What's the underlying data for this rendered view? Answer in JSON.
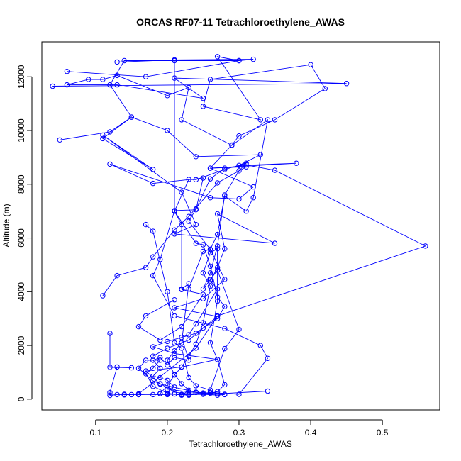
{
  "chart_data": {
    "type": "line",
    "title": "ORCAS RF07-11 Tetrachloroethylene_AWAS",
    "xlabel": "Tetrachloroethylene_AWAS",
    "ylabel": "Altitude (m)",
    "xlim": [
      0.025,
      0.58
    ],
    "ylim": [
      -400,
      13300
    ],
    "xticks": [
      0.1,
      0.2,
      0.3,
      0.4,
      0.5
    ],
    "xtick_labels": [
      "0.1",
      "0.2",
      "0.3",
      "0.4",
      "0.5"
    ],
    "yticks": [
      0,
      2000,
      4000,
      6000,
      8000,
      10000,
      12000
    ],
    "ytick_labels": [
      "0",
      "2000",
      "4000",
      "6000",
      "8000",
      "10000",
      "12000"
    ],
    "grid": false,
    "legend": "none",
    "marker": "open-circle",
    "color": "#0000ff",
    "series": [
      {
        "points": [
          [
            0.14,
            180
          ],
          [
            0.16,
            170
          ],
          [
            0.19,
            200
          ],
          [
            0.22,
            170
          ],
          [
            0.25,
            190
          ],
          [
            0.28,
            180
          ],
          [
            0.24,
            260
          ],
          [
            0.19,
            560
          ],
          [
            0.17,
            1050
          ],
          [
            0.22,
            1200
          ],
          [
            0.27,
            1480
          ],
          [
            0.21,
            1700
          ],
          [
            0.18,
            1950
          ],
          [
            0.2,
            2150
          ],
          [
            0.24,
            2450
          ],
          [
            0.27,
            3080
          ],
          [
            0.21,
            3400
          ],
          [
            0.25,
            3740
          ],
          [
            0.28,
            4460
          ],
          [
            0.26,
            5580
          ],
          [
            0.23,
            6620
          ],
          [
            0.24,
            7080
          ],
          [
            0.26,
            8200
          ],
          [
            0.28,
            8600
          ],
          [
            0.31,
            8720
          ],
          [
            0.35,
            8520
          ],
          [
            0.56,
            5700
          ],
          [
            0.27,
            3100
          ],
          [
            0.24,
            1900
          ],
          [
            0.16,
            200
          ],
          [
            0.14,
            160
          ]
        ]
      },
      {
        "points": [
          [
            0.16,
            170
          ],
          [
            0.2,
            190
          ],
          [
            0.23,
            150
          ],
          [
            0.26,
            250
          ],
          [
            0.3,
            180
          ],
          [
            0.34,
            1520
          ],
          [
            0.33,
            2000
          ],
          [
            0.28,
            2630
          ],
          [
            0.21,
            3100
          ],
          [
            0.18,
            4600
          ],
          [
            0.19,
            5200
          ],
          [
            0.21,
            7020
          ],
          [
            0.24,
            7050
          ],
          [
            0.25,
            8230
          ],
          [
            0.18,
            8030
          ],
          [
            0.12,
            8750
          ],
          [
            0.26,
            7500
          ],
          [
            0.3,
            7450
          ],
          [
            0.32,
            7900
          ],
          [
            0.26,
            8600
          ],
          [
            0.38,
            8780
          ],
          [
            0.3,
            8700
          ],
          [
            0.33,
            9100
          ],
          [
            0.24,
            9030
          ],
          [
            0.2,
            10000
          ],
          [
            0.15,
            10500
          ],
          [
            0.12,
            11700
          ],
          [
            0.14,
            12600
          ],
          [
            0.3,
            12600
          ],
          [
            0.32,
            12650
          ],
          [
            0.21,
            12630
          ],
          [
            0.13,
            12550
          ]
        ]
      },
      {
        "points": [
          [
            0.06,
            12200
          ],
          [
            0.17,
            12000
          ],
          [
            0.3,
            12600
          ],
          [
            0.27,
            12750
          ],
          [
            0.33,
            10400
          ],
          [
            0.25,
            10900
          ],
          [
            0.26,
            11900
          ],
          [
            0.4,
            12450
          ],
          [
            0.42,
            11560
          ],
          [
            0.35,
            10400
          ],
          [
            0.3,
            9800
          ],
          [
            0.29,
            9460
          ],
          [
            0.26,
            8600
          ],
          [
            0.31,
            8650
          ],
          [
            0.27,
            8050
          ],
          [
            0.23,
            6800
          ],
          [
            0.21,
            6300
          ],
          [
            0.18,
            5300
          ],
          [
            0.17,
            4900
          ],
          [
            0.13,
            4600
          ],
          [
            0.11,
            3850
          ]
        ]
      },
      {
        "points": [
          [
            0.04,
            11650
          ],
          [
            0.45,
            11750
          ],
          [
            0.21,
            11950
          ],
          [
            0.25,
            11200
          ],
          [
            0.13,
            11700
          ],
          [
            0.06,
            11700
          ],
          [
            0.09,
            11900
          ],
          [
            0.11,
            11900
          ],
          [
            0.13,
            12050
          ],
          [
            0.2,
            11300
          ],
          [
            0.23,
            11600
          ],
          [
            0.22,
            10400
          ],
          [
            0.29,
            9450
          ],
          [
            0.34,
            10400
          ],
          [
            0.32,
            7500
          ],
          [
            0.31,
            7000
          ],
          [
            0.28,
            7560
          ],
          [
            0.27,
            6130
          ],
          [
            0.26,
            5580
          ],
          [
            0.25,
            5500
          ],
          [
            0.23,
            4100
          ],
          [
            0.22,
            4080
          ],
          [
            0.25,
            3900
          ],
          [
            0.22,
            2700
          ],
          [
            0.19,
            2200
          ],
          [
            0.16,
            2700
          ],
          [
            0.17,
            3100
          ],
          [
            0.21,
            3700
          ]
        ]
      },
      {
        "points": [
          [
            0.05,
            9650
          ],
          [
            0.12,
            9950
          ],
          [
            0.15,
            10500
          ],
          [
            0.11,
            9700
          ],
          [
            0.18,
            8550
          ],
          [
            0.11,
            9830
          ],
          [
            0.22,
            7700
          ],
          [
            0.24,
            6500
          ],
          [
            0.21,
            6150
          ],
          [
            0.35,
            5800
          ],
          [
            0.27,
            6900
          ],
          [
            0.28,
            5600
          ],
          [
            0.27,
            4900
          ],
          [
            0.26,
            4400
          ],
          [
            0.27,
            4100
          ],
          [
            0.24,
            2800
          ],
          [
            0.23,
            2400
          ],
          [
            0.22,
            2300
          ],
          [
            0.23,
            1450
          ],
          [
            0.21,
            1550
          ],
          [
            0.2,
            1270
          ],
          [
            0.19,
            1550
          ],
          [
            0.18,
            1450
          ],
          [
            0.19,
            1150
          ],
          [
            0.18,
            850
          ],
          [
            0.19,
            800
          ],
          [
            0.2,
            700
          ],
          [
            0.21,
            450
          ],
          [
            0.2,
            370
          ],
          [
            0.23,
            270
          ],
          [
            0.24,
            250
          ],
          [
            0.27,
            200
          ],
          [
            0.34,
            300
          ]
        ]
      },
      {
        "points": [
          [
            0.12,
            2450
          ],
          [
            0.12,
            1190
          ],
          [
            0.15,
            1170
          ],
          [
            0.13,
            1200
          ],
          [
            0.12,
            250
          ],
          [
            0.12,
            140
          ],
          [
            0.13,
            170
          ],
          [
            0.15,
            170
          ],
          [
            0.16,
            180
          ],
          [
            0.18,
            170
          ],
          [
            0.2,
            170
          ],
          [
            0.21,
            190
          ],
          [
            0.22,
            180
          ],
          [
            0.23,
            170
          ],
          [
            0.25,
            180
          ],
          [
            0.27,
            150
          ],
          [
            0.28,
            170
          ]
        ]
      },
      {
        "points": [
          [
            0.21,
            12600
          ],
          [
            0.21,
            7000
          ],
          [
            0.22,
            6500
          ],
          [
            0.22,
            4100
          ],
          [
            0.23,
            4300
          ],
          [
            0.22,
            2100
          ],
          [
            0.21,
            1800
          ],
          [
            0.2,
            1450
          ],
          [
            0.21,
            920
          ],
          [
            0.22,
            580
          ],
          [
            0.23,
            330
          ],
          [
            0.22,
            150
          ],
          [
            0.2,
            220
          ],
          [
            0.18,
            480
          ],
          [
            0.17,
            950
          ],
          [
            0.18,
            1150
          ],
          [
            0.19,
            1450
          ],
          [
            0.17,
            1450
          ],
          [
            0.16,
            1150
          ],
          [
            0.18,
            680
          ],
          [
            0.19,
            580
          ],
          [
            0.21,
            260
          ],
          [
            0.23,
            190
          ],
          [
            0.25,
            230
          ],
          [
            0.26,
            220
          ],
          [
            0.27,
            280
          ],
          [
            0.28,
            540
          ],
          [
            0.27,
            1480
          ],
          [
            0.26,
            2100
          ],
          [
            0.27,
            3650
          ],
          [
            0.27,
            5600
          ],
          [
            0.26,
            5450
          ],
          [
            0.25,
            4700
          ],
          [
            0.26,
            4200
          ],
          [
            0.25,
            2850
          ],
          [
            0.24,
            2050
          ],
          [
            0.23,
            1600
          ],
          [
            0.22,
            1200
          ],
          [
            0.21,
            900
          ],
          [
            0.2,
            500
          ],
          [
            0.19,
            210
          ]
        ]
      },
      {
        "points": [
          [
            0.17,
            6500
          ],
          [
            0.18,
            6250
          ],
          [
            0.2,
            4000
          ],
          [
            0.21,
            2100
          ],
          [
            0.22,
            1900
          ],
          [
            0.23,
            800
          ],
          [
            0.24,
            500
          ],
          [
            0.26,
            340
          ],
          [
            0.28,
            1880
          ],
          [
            0.3,
            2600
          ],
          [
            0.27,
            4800
          ],
          [
            0.26,
            4450
          ],
          [
            0.25,
            4100
          ],
          [
            0.26,
            4700
          ],
          [
            0.27,
            5700
          ],
          [
            0.28,
            7600
          ],
          [
            0.3,
            8500
          ],
          [
            0.31,
            8780
          ],
          [
            0.28,
            8550
          ],
          [
            0.24,
            8170
          ],
          [
            0.23,
            8180
          ],
          [
            0.21,
            7000
          ],
          [
            0.24,
            5800
          ],
          [
            0.25,
            5750
          ],
          [
            0.26,
            4950
          ],
          [
            0.27,
            3800
          ],
          [
            0.28,
            3450
          ],
          [
            0.27,
            3000
          ],
          [
            0.25,
            2650
          ],
          [
            0.23,
            2200
          ],
          [
            0.2,
            1900
          ],
          [
            0.18,
            1600
          ]
        ]
      }
    ]
  }
}
